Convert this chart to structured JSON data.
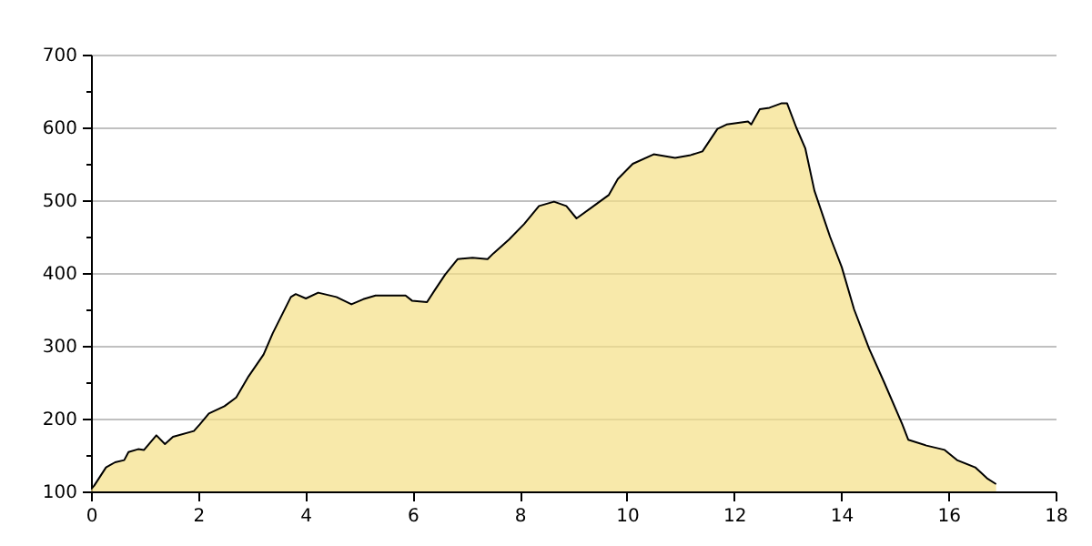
{
  "chart_data": {
    "type": "area",
    "x": [
      0,
      0.06,
      0.28,
      0.45,
      0.62,
      0.7,
      0.88,
      0.99,
      1.22,
      1.38,
      1.53,
      1.92,
      2.03,
      2.2,
      2.49,
      2.71,
      2.94,
      3.22,
      3.39,
      3.56,
      3.73,
      3.82,
      4.01,
      4.24,
      4.58,
      4.86,
      5.08,
      5.31,
      5.87,
      5.99,
      6.27,
      6.42,
      6.61,
      6.84,
      7.12,
      7.4,
      7.51,
      7.8,
      8.08,
      8.36,
      8.64,
      8.87,
      9.06,
      9.38,
      9.66,
      9.83,
      10.11,
      10.5,
      10.9,
      11.19,
      11.41,
      11.69,
      11.86,
      12.26,
      12.32,
      12.48,
      12.66,
      12.88,
      12.99,
      13.16,
      13.33,
      13.5,
      13.79,
      14.01,
      14.24,
      14.52,
      14.8,
      15.14,
      15.25,
      15.59,
      15.93,
      16.16,
      16.5,
      16.72,
      16.89
    ],
    "series": [
      {
        "color": "#f5e086",
        "values": [
          103,
          108,
          133,
          140,
          143,
          154,
          158,
          157,
          177,
          165,
          175,
          183,
          192,
          207,
          217,
          229,
          258,
          288,
          317,
          342,
          367,
          371,
          365,
          373,
          367,
          357,
          364,
          369,
          369,
          362,
          360,
          377,
          398,
          419,
          421,
          419,
          427,
          446,
          467,
          492,
          498,
          492,
          475,
          492,
          507,
          529,
          550,
          563,
          558,
          562,
          567,
          598,
          604,
          608,
          604,
          625,
          627,
          633,
          633,
          600,
          571,
          513,
          450,
          408,
          350,
          296,
          250,
          192,
          171,
          163,
          157,
          143,
          133,
          118,
          110
        ]
      }
    ],
    "xlim": [
      0,
      18
    ],
    "xticks": [
      0,
      2,
      4,
      6,
      8,
      10,
      12,
      14,
      16,
      18
    ],
    "ylim": [
      100,
      700
    ],
    "yticks": [
      100,
      {
        "value": 150,
        "label": null
      },
      200,
      {
        "value": 250,
        "label": null
      },
      300,
      {
        "value": 350,
        "label": null
      },
      400,
      {
        "value": 450,
        "label": null
      },
      500,
      {
        "value": 550,
        "label": null
      },
      600,
      {
        "value": 650,
        "label": null
      },
      700
    ],
    "grid": "y"
  }
}
